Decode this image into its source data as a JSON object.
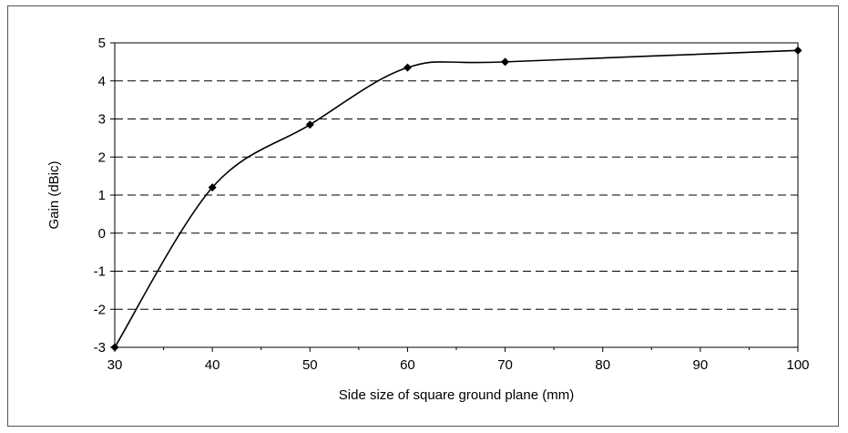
{
  "chart_data": {
    "type": "line",
    "title": "",
    "xlabel": "Side size of square ground plane (mm)",
    "ylabel": "Gain (dBic)",
    "x_tick_labels": [
      "30",
      "40",
      "50",
      "60",
      "70",
      "80",
      "90",
      "100"
    ],
    "y_tick_labels": [
      "5",
      "4",
      "3",
      "2",
      "1",
      "0",
      "-1",
      "-2",
      "-3"
    ],
    "ylim": [
      -3,
      5
    ],
    "grid": "horizontal-dashed",
    "smoothed": true,
    "series": [
      {
        "x": [
          "30",
          "40",
          "50",
          "60",
          "70",
          "100"
        ],
        "values": [
          -3.0,
          1.2,
          2.85,
          4.35,
          4.5,
          4.8
        ],
        "color": "#000000",
        "marker": "diamond"
      }
    ]
  }
}
